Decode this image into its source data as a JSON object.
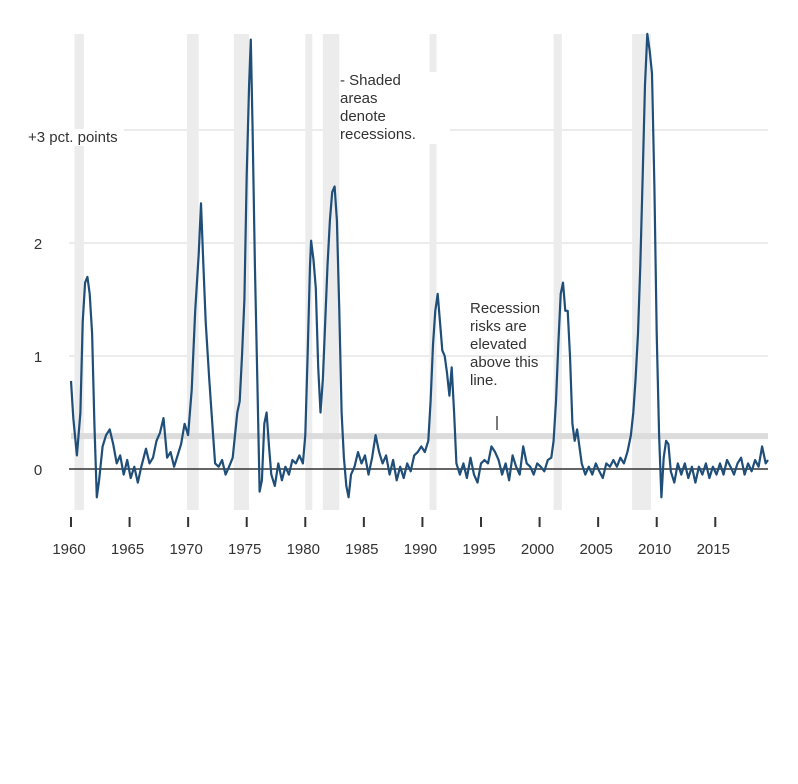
{
  "chart_data": {
    "type": "line",
    "title": "",
    "xlabel": "",
    "ylabel": "",
    "xlim": [
      1960,
      2019.5
    ],
    "ylim": [
      -0.35,
      3.9
    ],
    "y_ticks": [
      {
        "value": 0,
        "label": "0"
      },
      {
        "value": 1,
        "label": "1"
      },
      {
        "value": 2,
        "label": "2"
      },
      {
        "value": 3,
        "label": "+3 pct. points"
      }
    ],
    "x_ticks": [
      {
        "value": 1960,
        "label": "1960"
      },
      {
        "value": 1965,
        "label": "1965"
      },
      {
        "value": 1970,
        "label": "1970"
      },
      {
        "value": 1975,
        "label": "1975"
      },
      {
        "value": 1980,
        "label": "1980"
      },
      {
        "value": 1985,
        "label": "1985"
      },
      {
        "value": 1990,
        "label": "1990"
      },
      {
        "value": 1995,
        "label": "1995"
      },
      {
        "value": 2000,
        "label": "2000"
      },
      {
        "value": 2005,
        "label": "2005"
      },
      {
        "value": 2010,
        "label": "2010"
      },
      {
        "value": 2015,
        "label": "2015"
      }
    ],
    "grid": true,
    "threshold": {
      "value": 0.3
    },
    "recessions": [
      {
        "start": 1960.3,
        "end": 1961.1
      },
      {
        "start": 1969.9,
        "end": 1970.9
      },
      {
        "start": 1973.9,
        "end": 1975.2
      },
      {
        "start": 1980.0,
        "end": 1980.6
      },
      {
        "start": 1981.5,
        "end": 1982.9
      },
      {
        "start": 1990.6,
        "end": 1991.2
      },
      {
        "start": 2001.2,
        "end": 2001.9
      },
      {
        "start": 2007.9,
        "end": 2009.5
      }
    ],
    "series": [
      {
        "color": "#1f4e79",
        "points": [
          [
            1960.0,
            0.78
          ],
          [
            1960.2,
            0.45
          ],
          [
            1960.5,
            0.12
          ],
          [
            1960.8,
            0.5
          ],
          [
            1961.0,
            1.3
          ],
          [
            1961.2,
            1.65
          ],
          [
            1961.4,
            1.7
          ],
          [
            1961.6,
            1.55
          ],
          [
            1961.8,
            1.2
          ],
          [
            1962.0,
            0.4
          ],
          [
            1962.2,
            -0.25
          ],
          [
            1962.4,
            -0.1
          ],
          [
            1962.7,
            0.2
          ],
          [
            1963.0,
            0.3
          ],
          [
            1963.3,
            0.35
          ],
          [
            1963.6,
            0.22
          ],
          [
            1963.9,
            0.05
          ],
          [
            1964.2,
            0.12
          ],
          [
            1964.5,
            -0.05
          ],
          [
            1964.8,
            0.08
          ],
          [
            1965.1,
            -0.08
          ],
          [
            1965.4,
            0.02
          ],
          [
            1965.7,
            -0.12
          ],
          [
            1966.0,
            0.02
          ],
          [
            1966.4,
            0.18
          ],
          [
            1966.7,
            0.05
          ],
          [
            1967.0,
            0.1
          ],
          [
            1967.3,
            0.25
          ],
          [
            1967.6,
            0.32
          ],
          [
            1967.9,
            0.45
          ],
          [
            1968.2,
            0.1
          ],
          [
            1968.5,
            0.15
          ],
          [
            1968.8,
            0.02
          ],
          [
            1969.1,
            0.12
          ],
          [
            1969.4,
            0.22
          ],
          [
            1969.7,
            0.4
          ],
          [
            1970.0,
            0.3
          ],
          [
            1970.3,
            0.7
          ],
          [
            1970.6,
            1.4
          ],
          [
            1970.9,
            1.9
          ],
          [
            1971.1,
            2.35
          ],
          [
            1971.3,
            1.8
          ],
          [
            1971.5,
            1.3
          ],
          [
            1971.8,
            0.8
          ],
          [
            1972.1,
            0.35
          ],
          [
            1972.3,
            0.05
          ],
          [
            1972.6,
            0.02
          ],
          [
            1972.9,
            0.08
          ],
          [
            1973.2,
            -0.05
          ],
          [
            1973.5,
            0.02
          ],
          [
            1973.8,
            0.1
          ],
          [
            1974.0,
            0.3
          ],
          [
            1974.2,
            0.5
          ],
          [
            1974.4,
            0.6
          ],
          [
            1974.6,
            1.0
          ],
          [
            1974.8,
            1.5
          ],
          [
            1975.0,
            2.6
          ],
          [
            1975.2,
            3.4
          ],
          [
            1975.35,
            3.8
          ],
          [
            1975.5,
            3.0
          ],
          [
            1975.7,
            1.8
          ],
          [
            1975.9,
            0.8
          ],
          [
            1976.1,
            -0.2
          ],
          [
            1976.3,
            -0.1
          ],
          [
            1976.5,
            0.4
          ],
          [
            1976.7,
            0.5
          ],
          [
            1976.9,
            0.2
          ],
          [
            1977.1,
            -0.05
          ],
          [
            1977.4,
            -0.15
          ],
          [
            1977.7,
            0.05
          ],
          [
            1978.0,
            -0.1
          ],
          [
            1978.3,
            0.02
          ],
          [
            1978.6,
            -0.05
          ],
          [
            1978.9,
            0.08
          ],
          [
            1979.2,
            0.05
          ],
          [
            1979.5,
            0.12
          ],
          [
            1979.8,
            0.05
          ],
          [
            1980.0,
            0.3
          ],
          [
            1980.2,
            1.0
          ],
          [
            1980.4,
            1.8
          ],
          [
            1980.5,
            2.02
          ],
          [
            1980.7,
            1.85
          ],
          [
            1980.9,
            1.6
          ],
          [
            1981.1,
            0.9
          ],
          [
            1981.3,
            0.5
          ],
          [
            1981.5,
            0.8
          ],
          [
            1981.7,
            1.3
          ],
          [
            1981.9,
            1.8
          ],
          [
            1982.1,
            2.2
          ],
          [
            1982.3,
            2.45
          ],
          [
            1982.5,
            2.5
          ],
          [
            1982.7,
            2.2
          ],
          [
            1982.9,
            1.4
          ],
          [
            1983.1,
            0.5
          ],
          [
            1983.3,
            0.1
          ],
          [
            1983.5,
            -0.15
          ],
          [
            1983.7,
            -0.25
          ],
          [
            1983.9,
            -0.05
          ],
          [
            1984.2,
            0.02
          ],
          [
            1984.5,
            0.15
          ],
          [
            1984.8,
            0.05
          ],
          [
            1985.1,
            0.12
          ],
          [
            1985.4,
            -0.05
          ],
          [
            1985.7,
            0.1
          ],
          [
            1986.0,
            0.3
          ],
          [
            1986.3,
            0.15
          ],
          [
            1986.6,
            0.05
          ],
          [
            1986.9,
            0.12
          ],
          [
            1987.2,
            -0.05
          ],
          [
            1987.5,
            0.08
          ],
          [
            1987.8,
            -0.1
          ],
          [
            1988.1,
            0.02
          ],
          [
            1988.4,
            -0.08
          ],
          [
            1988.7,
            0.05
          ],
          [
            1989.0,
            -0.02
          ],
          [
            1989.3,
            0.12
          ],
          [
            1989.6,
            0.15
          ],
          [
            1989.9,
            0.2
          ],
          [
            1990.2,
            0.15
          ],
          [
            1990.5,
            0.25
          ],
          [
            1990.7,
            0.6
          ],
          [
            1990.9,
            1.1
          ],
          [
            1991.1,
            1.4
          ],
          [
            1991.3,
            1.55
          ],
          [
            1991.5,
            1.3
          ],
          [
            1991.7,
            1.05
          ],
          [
            1991.9,
            1.0
          ],
          [
            1992.1,
            0.85
          ],
          [
            1992.3,
            0.65
          ],
          [
            1992.5,
            0.9
          ],
          [
            1992.7,
            0.5
          ],
          [
            1992.9,
            0.05
          ],
          [
            1993.2,
            -0.05
          ],
          [
            1993.5,
            0.05
          ],
          [
            1993.8,
            -0.08
          ],
          [
            1994.1,
            0.1
          ],
          [
            1994.4,
            -0.05
          ],
          [
            1994.7,
            -0.12
          ],
          [
            1995.0,
            0.05
          ],
          [
            1995.3,
            0.08
          ],
          [
            1995.6,
            0.05
          ],
          [
            1995.9,
            0.2
          ],
          [
            1996.2,
            0.15
          ],
          [
            1996.5,
            0.08
          ],
          [
            1996.8,
            -0.05
          ],
          [
            1997.1,
            0.05
          ],
          [
            1997.4,
            -0.1
          ],
          [
            1997.7,
            0.12
          ],
          [
            1998.0,
            0.02
          ],
          [
            1998.3,
            -0.05
          ],
          [
            1998.6,
            0.2
          ],
          [
            1998.9,
            0.05
          ],
          [
            1999.2,
            0.02
          ],
          [
            1999.5,
            -0.05
          ],
          [
            1999.8,
            0.05
          ],
          [
            2000.1,
            0.02
          ],
          [
            2000.4,
            -0.02
          ],
          [
            2000.7,
            0.08
          ],
          [
            2001.0,
            0.1
          ],
          [
            2001.2,
            0.25
          ],
          [
            2001.4,
            0.6
          ],
          [
            2001.6,
            1.1
          ],
          [
            2001.8,
            1.55
          ],
          [
            2002.0,
            1.65
          ],
          [
            2002.2,
            1.4
          ],
          [
            2002.4,
            1.4
          ],
          [
            2002.6,
            1.0
          ],
          [
            2002.8,
            0.4
          ],
          [
            2003.0,
            0.25
          ],
          [
            2003.2,
            0.35
          ],
          [
            2003.4,
            0.2
          ],
          [
            2003.6,
            0.05
          ],
          [
            2003.9,
            -0.05
          ],
          [
            2004.2,
            0.02
          ],
          [
            2004.5,
            -0.05
          ],
          [
            2004.8,
            0.05
          ],
          [
            2005.1,
            -0.02
          ],
          [
            2005.4,
            -0.08
          ],
          [
            2005.7,
            0.05
          ],
          [
            2006.0,
            0.02
          ],
          [
            2006.3,
            0.08
          ],
          [
            2006.6,
            0.02
          ],
          [
            2006.9,
            0.1
          ],
          [
            2007.2,
            0.05
          ],
          [
            2007.5,
            0.15
          ],
          [
            2007.8,
            0.3
          ],
          [
            2008.0,
            0.5
          ],
          [
            2008.2,
            0.8
          ],
          [
            2008.4,
            1.2
          ],
          [
            2008.6,
            1.8
          ],
          [
            2008.8,
            2.6
          ],
          [
            2009.0,
            3.4
          ],
          [
            2009.2,
            3.85
          ],
          [
            2009.4,
            3.7
          ],
          [
            2009.6,
            3.5
          ],
          [
            2009.8,
            2.5
          ],
          [
            2010.0,
            1.2
          ],
          [
            2010.2,
            0.3
          ],
          [
            2010.4,
            -0.25
          ],
          [
            2010.6,
            0.1
          ],
          [
            2010.8,
            0.25
          ],
          [
            2011.0,
            0.22
          ],
          [
            2011.2,
            -0.02
          ],
          [
            2011.5,
            -0.12
          ],
          [
            2011.8,
            0.05
          ],
          [
            2012.1,
            -0.05
          ],
          [
            2012.4,
            0.05
          ],
          [
            2012.7,
            -0.08
          ],
          [
            2013.0,
            0.02
          ],
          [
            2013.3,
            -0.12
          ],
          [
            2013.6,
            0.02
          ],
          [
            2013.9,
            -0.05
          ],
          [
            2014.2,
            0.05
          ],
          [
            2014.5,
            -0.08
          ],
          [
            2014.8,
            0.02
          ],
          [
            2015.1,
            -0.05
          ],
          [
            2015.4,
            0.05
          ],
          [
            2015.7,
            -0.05
          ],
          [
            2016.0,
            0.08
          ],
          [
            2016.3,
            0.02
          ],
          [
            2016.6,
            -0.05
          ],
          [
            2016.9,
            0.05
          ],
          [
            2017.2,
            0.1
          ],
          [
            2017.5,
            -0.05
          ],
          [
            2017.8,
            0.05
          ],
          [
            2018.1,
            -0.02
          ],
          [
            2018.4,
            0.08
          ],
          [
            2018.7,
            0.02
          ],
          [
            2019.0,
            0.2
          ],
          [
            2019.3,
            0.05
          ],
          [
            2019.5,
            0.08
          ]
        ]
      }
    ]
  },
  "annotations": {
    "shaded_note": "- Shaded\nareas\ndenote\nrecessions.",
    "risk_note": "Recession\nrisks are\nelevated\nabove this\nline.",
    "y_unit_label": "+3 pct. points"
  },
  "colors": {
    "line": "#1f4e79",
    "recession_band": "#ececec",
    "threshold_band": "#dcdcdc",
    "zero_line": "#333333",
    "grid": "#e6e6e6"
  }
}
